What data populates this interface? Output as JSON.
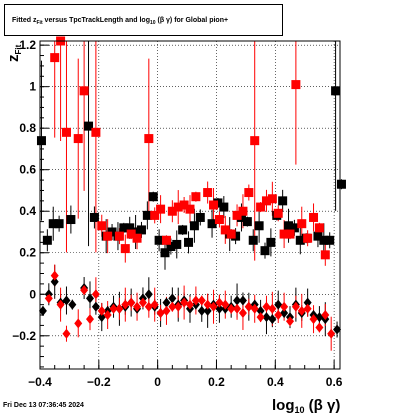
{
  "title": {
    "prefix": "Fitted  z",
    "z_sub": "Fit",
    "mid": "  versus TpcTrackLength and log",
    "log_sub": "10",
    "suffix": "(β  γ) for Global pion+"
  },
  "footer": {
    "date": "Fri Dec 13 07:36:45 2024"
  },
  "colors": {
    "series_black": "#000000",
    "series_red": "#ff0000",
    "grid": "#000000"
  },
  "chart_data": {
    "type": "scatter",
    "title": "Fitted z_Fit versus TpcTrackLength and log10(β γ) for Global pion+",
    "xlabel": "log10(β γ)",
    "ylabel": "z_Fit",
    "xlim": [
      -0.4,
      0.62
    ],
    "ylim": [
      -0.36,
      1.22
    ],
    "grid": true,
    "x_ticks": [
      {
        "v": -0.4,
        "label": "−0.4"
      },
      {
        "v": -0.2,
        "label": "−0.2"
      },
      {
        "v": 0,
        "label": "0"
      },
      {
        "v": 0.2,
        "label": "0.2"
      },
      {
        "v": 0.4,
        "label": "0.4"
      },
      {
        "v": 0.6,
        "label": "0.6"
      }
    ],
    "y_ticks": [
      {
        "v": -0.2,
        "label": "−0.2"
      },
      {
        "v": 0,
        "label": "0"
      },
      {
        "v": 0.2,
        "label": "0.2"
      },
      {
        "v": 0.4,
        "label": "0.4"
      },
      {
        "v": 0.6,
        "label": "0.6"
      },
      {
        "v": 0.8,
        "label": "0.8"
      },
      {
        "v": 1,
        "label": "1"
      },
      {
        "v": 1.2,
        "label": "1.2"
      }
    ],
    "series": [
      {
        "color": "#000000",
        "marker": "square",
        "points": [
          {
            "x": -0.395,
            "y": 0.74
          },
          {
            "x": -0.375,
            "y": 0.26
          },
          {
            "x": -0.355,
            "y": 0.34
          },
          {
            "x": -0.335,
            "y": 0.34
          },
          {
            "x": -0.295,
            "y": 0.36
          },
          {
            "x": -0.235,
            "y": 0.81
          },
          {
            "x": -0.215,
            "y": 0.37
          },
          {
            "x": -0.175,
            "y": 0.28
          },
          {
            "x": -0.155,
            "y": 0.3
          },
          {
            "x": -0.135,
            "y": 0.28
          },
          {
            "x": -0.115,
            "y": 0.32
          },
          {
            "x": -0.095,
            "y": 0.32
          },
          {
            "x": -0.075,
            "y": 0.3
          },
          {
            "x": -0.055,
            "y": 0.31
          },
          {
            "x": -0.035,
            "y": 0.38
          },
          {
            "x": -0.015,
            "y": 0.47
          },
          {
            "x": 0.005,
            "y": 0.26
          },
          {
            "x": 0.025,
            "y": 0.2
          },
          {
            "x": 0.045,
            "y": 0.23
          },
          {
            "x": 0.065,
            "y": 0.24
          },
          {
            "x": 0.085,
            "y": 0.31
          },
          {
            "x": 0.105,
            "y": 0.25
          },
          {
            "x": 0.125,
            "y": 0.33
          },
          {
            "x": 0.145,
            "y": 0.37
          },
          {
            "x": 0.185,
            "y": 0.34
          },
          {
            "x": 0.205,
            "y": 0.44
          },
          {
            "x": 0.225,
            "y": 0.42
          },
          {
            "x": 0.245,
            "y": 0.29
          },
          {
            "x": 0.265,
            "y": 0.28
          },
          {
            "x": 0.285,
            "y": 0.37
          },
          {
            "x": 0.305,
            "y": 0.35
          },
          {
            "x": 0.325,
            "y": 0.26
          },
          {
            "x": 0.345,
            "y": 0.33
          },
          {
            "x": 0.365,
            "y": 0.21
          },
          {
            "x": 0.385,
            "y": 0.25
          },
          {
            "x": 0.405,
            "y": 0.38
          },
          {
            "x": 0.425,
            "y": 0.45
          },
          {
            "x": 0.445,
            "y": 0.33
          },
          {
            "x": 0.465,
            "y": 0.32
          },
          {
            "x": 0.485,
            "y": 0.26
          },
          {
            "x": 0.505,
            "y": 0.27
          },
          {
            "x": 0.545,
            "y": 0.28
          },
          {
            "x": 0.565,
            "y": 0.26
          },
          {
            "x": 0.585,
            "y": 0.26
          },
          {
            "x": 0.605,
            "y": 0.98
          },
          {
            "x": 0.625,
            "y": 0.53
          }
        ]
      },
      {
        "color": "#ff0000",
        "marker": "square",
        "points": [
          {
            "x": -0.35,
            "y": 1.14
          },
          {
            "x": -0.33,
            "y": 1.22
          },
          {
            "x": -0.31,
            "y": 0.78
          },
          {
            "x": -0.27,
            "y": 0.75
          },
          {
            "x": -0.25,
            "y": 0.98
          },
          {
            "x": -0.21,
            "y": 0.78
          },
          {
            "x": -0.19,
            "y": 0.33
          },
          {
            "x": -0.17,
            "y": 0.28
          },
          {
            "x": -0.13,
            "y": 0.28
          },
          {
            "x": -0.11,
            "y": 0.22
          },
          {
            "x": -0.09,
            "y": 0.29
          },
          {
            "x": -0.07,
            "y": 0.27
          },
          {
            "x": -0.03,
            "y": 0.75
          },
          {
            "x": -0.01,
            "y": 0.38
          },
          {
            "x": 0.01,
            "y": 0.41
          },
          {
            "x": 0.03,
            "y": 0.26
          },
          {
            "x": 0.05,
            "y": 0.4
          },
          {
            "x": 0.07,
            "y": 0.42
          },
          {
            "x": 0.09,
            "y": 0.43
          },
          {
            "x": 0.11,
            "y": 0.41
          },
          {
            "x": 0.13,
            "y": 0.47
          },
          {
            "x": 0.17,
            "y": 0.49
          },
          {
            "x": 0.19,
            "y": 0.43
          },
          {
            "x": 0.21,
            "y": 0.36
          },
          {
            "x": 0.23,
            "y": 0.31
          },
          {
            "x": 0.25,
            "y": 0.29
          },
          {
            "x": 0.27,
            "y": 0.38
          },
          {
            "x": 0.29,
            "y": 0.4
          },
          {
            "x": 0.31,
            "y": 0.49
          },
          {
            "x": 0.33,
            "y": 0.74
          },
          {
            "x": 0.35,
            "y": 0.42
          },
          {
            "x": 0.37,
            "y": 0.45
          },
          {
            "x": 0.39,
            "y": 0.46
          },
          {
            "x": 0.41,
            "y": 0.39
          },
          {
            "x": 0.43,
            "y": 0.29
          },
          {
            "x": 0.45,
            "y": 0.29
          },
          {
            "x": 0.47,
            "y": 1.01
          },
          {
            "x": 0.49,
            "y": 0.34
          },
          {
            "x": 0.51,
            "y": 0.27
          },
          {
            "x": 0.53,
            "y": 0.37
          },
          {
            "x": 0.55,
            "y": 0.32
          },
          {
            "x": 0.57,
            "y": 0.19
          }
        ]
      },
      {
        "color": "#000000",
        "marker": "diamond",
        "points": [
          {
            "x": -0.39,
            "y": -0.08
          },
          {
            "x": -0.37,
            "y": 0.0
          },
          {
            "x": -0.35,
            "y": 0.06
          },
          {
            "x": -0.33,
            "y": -0.04
          },
          {
            "x": -0.31,
            "y": -0.03
          },
          {
            "x": -0.29,
            "y": -0.05
          },
          {
            "x": -0.25,
            "y": 0.03
          },
          {
            "x": -0.23,
            "y": -0.02
          },
          {
            "x": -0.21,
            "y": -0.06
          },
          {
            "x": -0.19,
            "y": -0.11
          },
          {
            "x": -0.17,
            "y": -0.08
          },
          {
            "x": -0.15,
            "y": -0.06
          },
          {
            "x": -0.13,
            "y": -0.07
          },
          {
            "x": -0.11,
            "y": -0.06
          },
          {
            "x": -0.09,
            "y": -0.04
          },
          {
            "x": -0.07,
            "y": -0.07
          },
          {
            "x": -0.05,
            "y": -0.02
          },
          {
            "x": -0.03,
            "y": 0.0
          },
          {
            "x": -0.01,
            "y": -0.06
          },
          {
            "x": 0.01,
            "y": -0.09
          },
          {
            "x": 0.03,
            "y": -0.04
          },
          {
            "x": 0.05,
            "y": -0.02
          },
          {
            "x": 0.07,
            "y": -0.05
          },
          {
            "x": 0.09,
            "y": -0.03
          },
          {
            "x": 0.11,
            "y": -0.07
          },
          {
            "x": 0.13,
            "y": -0.05
          },
          {
            "x": 0.15,
            "y": -0.08
          },
          {
            "x": 0.17,
            "y": -0.08
          },
          {
            "x": 0.19,
            "y": -0.05
          },
          {
            "x": 0.21,
            "y": -0.07
          },
          {
            "x": 0.23,
            "y": -0.07
          },
          {
            "x": 0.25,
            "y": -0.06
          },
          {
            "x": 0.27,
            "y": -0.03
          },
          {
            "x": 0.29,
            "y": -0.03
          },
          {
            "x": 0.31,
            "y": -0.06
          },
          {
            "x": 0.33,
            "y": -0.05
          },
          {
            "x": 0.35,
            "y": -0.08
          },
          {
            "x": 0.37,
            "y": -0.11
          },
          {
            "x": 0.39,
            "y": -0.12
          },
          {
            "x": 0.41,
            "y": -0.05
          },
          {
            "x": 0.43,
            "y": -0.09
          },
          {
            "x": 0.45,
            "y": -0.11
          },
          {
            "x": 0.47,
            "y": -0.05
          },
          {
            "x": 0.49,
            "y": -0.09
          },
          {
            "x": 0.51,
            "y": -0.04
          },
          {
            "x": 0.53,
            "y": -0.1
          },
          {
            "x": 0.55,
            "y": -0.11
          },
          {
            "x": 0.57,
            "y": -0.12
          },
          {
            "x": 0.61,
            "y": -0.17
          }
        ]
      },
      {
        "color": "#ff0000",
        "marker": "diamond",
        "points": [
          {
            "x": -0.37,
            "y": -0.02
          },
          {
            "x": -0.35,
            "y": 0.09
          },
          {
            "x": -0.33,
            "y": -0.05
          },
          {
            "x": -0.31,
            "y": -0.19
          },
          {
            "x": -0.27,
            "y": -0.14
          },
          {
            "x": -0.25,
            "y": 0.02
          },
          {
            "x": -0.23,
            "y": -0.12
          },
          {
            "x": -0.21,
            "y": 0.0
          },
          {
            "x": -0.19,
            "y": -0.08
          },
          {
            "x": -0.17,
            "y": -0.1
          },
          {
            "x": -0.15,
            "y": -0.07
          },
          {
            "x": -0.13,
            "y": -0.07
          },
          {
            "x": -0.11,
            "y": -0.05
          },
          {
            "x": -0.09,
            "y": -0.04
          },
          {
            "x": -0.07,
            "y": -0.06
          },
          {
            "x": -0.05,
            "y": -0.04
          },
          {
            "x": -0.03,
            "y": -0.06
          },
          {
            "x": -0.01,
            "y": -0.05
          },
          {
            "x": 0.01,
            "y": -0.09
          },
          {
            "x": 0.03,
            "y": -0.08
          },
          {
            "x": 0.05,
            "y": -0.06
          },
          {
            "x": 0.07,
            "y": -0.06
          },
          {
            "x": 0.09,
            "y": -0.04
          },
          {
            "x": 0.11,
            "y": -0.05
          },
          {
            "x": 0.13,
            "y": -0.03
          },
          {
            "x": 0.15,
            "y": -0.03
          },
          {
            "x": 0.17,
            "y": -0.05
          },
          {
            "x": 0.19,
            "y": -0.06
          },
          {
            "x": 0.21,
            "y": -0.04
          },
          {
            "x": 0.23,
            "y": -0.05
          },
          {
            "x": 0.25,
            "y": -0.07
          },
          {
            "x": 0.27,
            "y": -0.07
          },
          {
            "x": 0.29,
            "y": -0.09
          },
          {
            "x": 0.31,
            "y": -0.06
          },
          {
            "x": 0.33,
            "y": -0.07
          },
          {
            "x": 0.35,
            "y": -0.11
          },
          {
            "x": 0.37,
            "y": -0.06
          },
          {
            "x": 0.39,
            "y": -0.07
          },
          {
            "x": 0.41,
            "y": -0.1
          },
          {
            "x": 0.43,
            "y": -0.06
          },
          {
            "x": 0.45,
            "y": -0.13
          },
          {
            "x": 0.47,
            "y": -0.06
          },
          {
            "x": 0.49,
            "y": -0.08
          },
          {
            "x": 0.51,
            "y": -0.07
          },
          {
            "x": 0.53,
            "y": -0.12
          },
          {
            "x": 0.55,
            "y": -0.16
          },
          {
            "x": 0.57,
            "y": -0.1
          },
          {
            "x": 0.59,
            "y": -0.19
          }
        ]
      }
    ]
  }
}
